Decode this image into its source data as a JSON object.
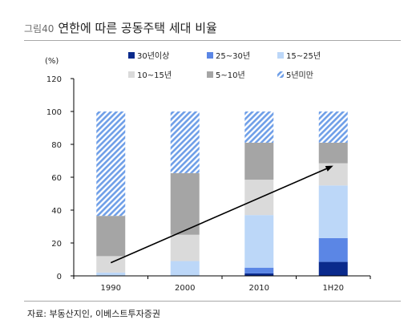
{
  "figure": {
    "label": "그림40",
    "title": "연한에 따른 공동주택 세대 비율",
    "source": "자료: 부동산지인, 이베스트투자증권"
  },
  "chart_data": {
    "type": "bar",
    "stacked": true,
    "unit_label": "(%)",
    "ylim": [
      0,
      120
    ],
    "yticks": [
      0,
      20,
      40,
      60,
      80,
      100,
      120
    ],
    "categories": [
      "1990",
      "2000",
      "2010",
      "1H20"
    ],
    "legend_position": "top-right",
    "series": [
      {
        "name": "30년이상",
        "color": "#0a2a8c",
        "pattern": "solid",
        "values": [
          0,
          0,
          1.5,
          8.5
        ]
      },
      {
        "name": "25~30년",
        "color": "#5b86e5",
        "pattern": "solid",
        "values": [
          0,
          0,
          3.5,
          14.5
        ]
      },
      {
        "name": "15~25년",
        "color": "#bcd7f8",
        "pattern": "solid",
        "values": [
          2,
          9,
          32,
          32
        ]
      },
      {
        "name": "10~15년",
        "color": "#dadada",
        "pattern": "solid",
        "values": [
          10,
          16,
          21.5,
          13.5
        ]
      },
      {
        "name": "5~10년",
        "color": "#a5a5a5",
        "pattern": "solid",
        "values": [
          24.5,
          37.5,
          22.5,
          12.5
        ]
      },
      {
        "name": "5년미만",
        "color": "#6f9fe8",
        "pattern": "hatched",
        "values": [
          63.5,
          37.5,
          19,
          19
        ]
      }
    ],
    "annotation": {
      "type": "arrow",
      "from": {
        "category": "1990",
        "value": 8
      },
      "to": {
        "category": "1H20",
        "value": 67
      }
    }
  }
}
